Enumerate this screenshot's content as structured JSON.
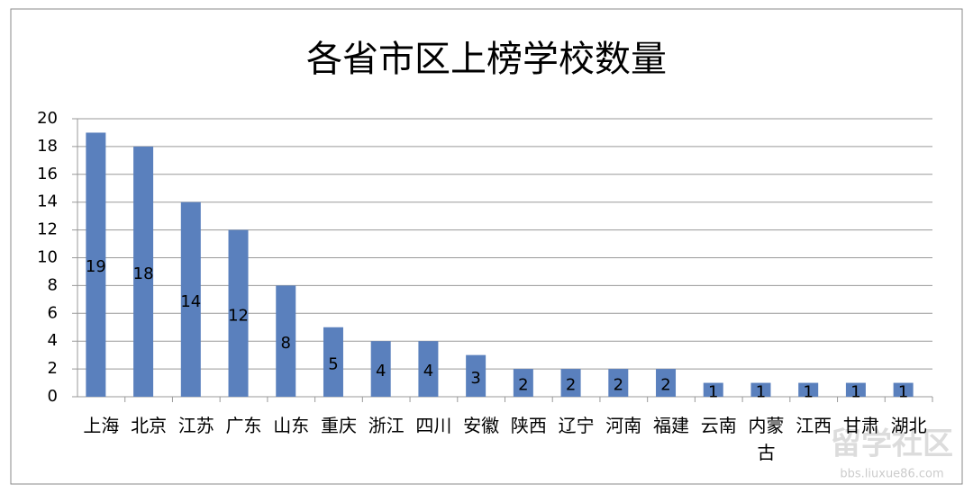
{
  "chart_data": {
    "type": "bar",
    "title": "各省市区上榜学校数量",
    "categories": [
      "上海",
      "北京",
      "江苏",
      "广东",
      "山东",
      "重庆",
      "浙江",
      "四川",
      "安徽",
      "陕西",
      "辽宁",
      "河南",
      "福建",
      "云南",
      "内蒙古",
      "江西",
      "甘肃",
      "湖北"
    ],
    "values": [
      19,
      18,
      14,
      12,
      8,
      5,
      4,
      4,
      3,
      2,
      2,
      2,
      2,
      1,
      1,
      1,
      1,
      1
    ],
    "color": "#5a80bd",
    "ylim": [
      0,
      20
    ],
    "yticks": [
      0,
      2,
      4,
      6,
      8,
      10,
      12,
      14,
      16,
      18,
      20
    ],
    "grid": true
  },
  "watermark": {
    "title": "留学社区",
    "url": "bbs.liuxue86.com"
  }
}
